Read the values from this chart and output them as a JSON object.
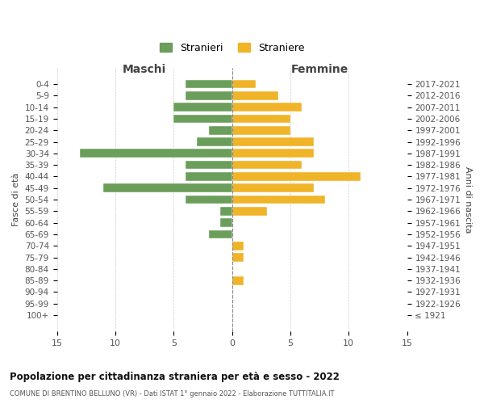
{
  "age_groups": [
    "0-4",
    "5-9",
    "10-14",
    "15-19",
    "20-24",
    "25-29",
    "30-34",
    "35-39",
    "40-44",
    "45-49",
    "50-54",
    "55-59",
    "60-64",
    "65-69",
    "70-74",
    "75-79",
    "80-84",
    "85-89",
    "90-94",
    "95-99",
    "100+"
  ],
  "birth_years": [
    "2017-2021",
    "2012-2016",
    "2007-2011",
    "2002-2006",
    "1997-2001",
    "1992-1996",
    "1987-1991",
    "1982-1986",
    "1977-1981",
    "1972-1976",
    "1967-1971",
    "1962-1966",
    "1957-1961",
    "1952-1956",
    "1947-1951",
    "1942-1946",
    "1937-1941",
    "1932-1936",
    "1927-1931",
    "1922-1926",
    "≤ 1921"
  ],
  "males": [
    4,
    4,
    5,
    5,
    2,
    3,
    13,
    4,
    4,
    11,
    4,
    1,
    1,
    2,
    0,
    0,
    0,
    0,
    0,
    0,
    0
  ],
  "females": [
    2,
    4,
    6,
    5,
    5,
    7,
    7,
    6,
    11,
    7,
    8,
    3,
    0,
    0,
    1,
    1,
    0,
    1,
    0,
    0,
    0
  ],
  "male_color": "#6a9e5a",
  "female_color": "#f0b429",
  "male_label": "Stranieri",
  "female_label": "Straniere",
  "title": "Popolazione per cittadinanza straniera per età e sesso - 2022",
  "subtitle": "COMUNE DI BRENTINO BELLUNO (VR) - Dati ISTAT 1° gennaio 2022 - Elaborazione TUTTITALIA.IT",
  "xlabel_left": "Maschi",
  "xlabel_right": "Femmine",
  "ylabel_left": "Fasce di età",
  "ylabel_right": "Anni di nascita",
  "xlim": 15,
  "background_color": "#ffffff",
  "grid_color": "#cccccc"
}
